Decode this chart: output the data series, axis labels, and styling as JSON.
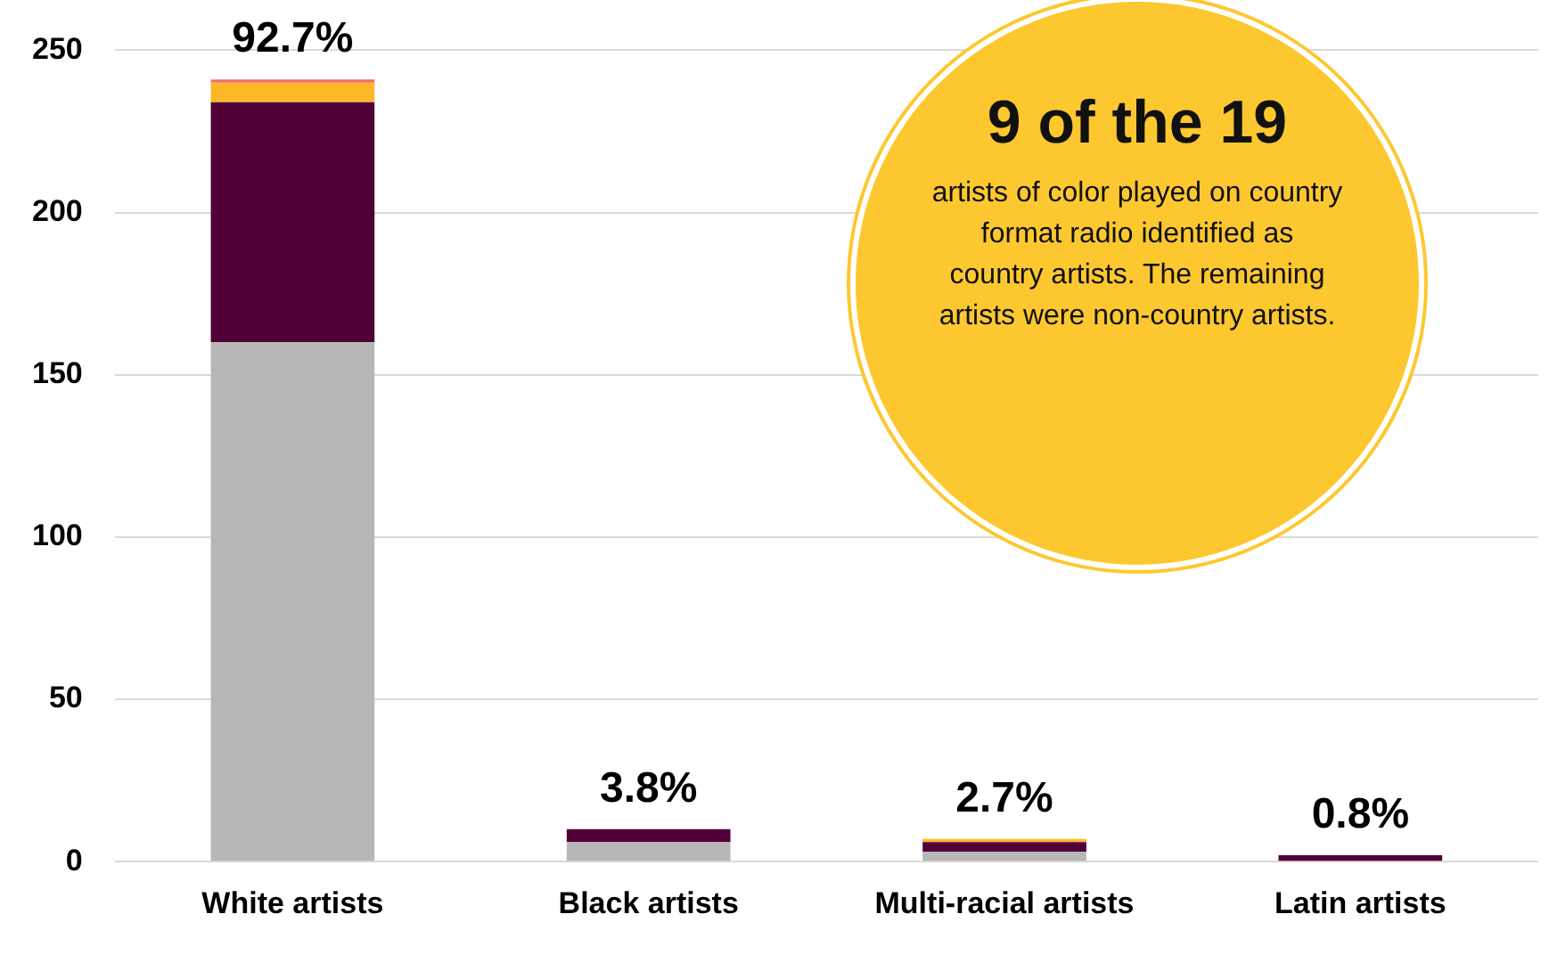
{
  "chart_data": {
    "type": "bar",
    "stacked": true,
    "categories": [
      "White artists",
      "Black artists",
      "Multi-racial artists",
      "Latin artists"
    ],
    "series": [
      {
        "color": "#b7b7b7",
        "values": [
          160,
          6,
          3,
          null
        ]
      },
      {
        "color": "#520038",
        "values": [
          74,
          4,
          3,
          2
        ]
      },
      {
        "color": "#fdb827",
        "values": [
          6,
          null,
          1,
          null
        ]
      },
      {
        "color": "#f26b6b",
        "values": [
          1,
          null,
          null,
          null
        ]
      }
    ],
    "ylim": [
      0,
      250
    ],
    "yticks": [
      0,
      50,
      100,
      150,
      200,
      250
    ],
    "grid": "y",
    "legend": false,
    "annotations": [
      {
        "text": "92.7%",
        "x": "White artists",
        "y": 241
      },
      {
        "text": "3.8%",
        "x": "Black artists",
        "y": 10
      },
      {
        "text": "2.7%",
        "x": "Multi-racial artists",
        "y": 7
      },
      {
        "text": "0.8%",
        "x": "Latin artists",
        "y": 2
      },
      "9 of the 19",
      "artists of color played on country format radio identified as country artists. The remaining artists were non-country artists."
    ]
  }
}
